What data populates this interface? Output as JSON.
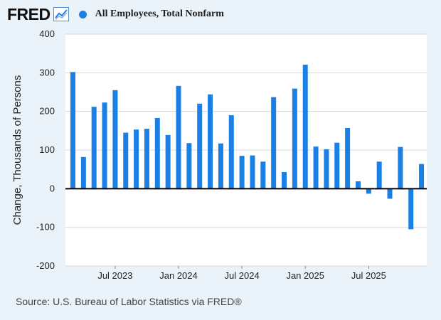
{
  "header": {
    "logo_text": "FRED",
    "series_label": "All Employees, Total Nonfarm"
  },
  "source": "Source: U.S. Bureau of Labor Statistics via FRED®",
  "colors": {
    "bar": "#1a80e5",
    "background": "#eaf3fa",
    "plot_background": "#ffffff",
    "grid": "#d8d8d8",
    "zero_line": "#000000"
  },
  "chart_data": {
    "type": "bar",
    "title": "All Employees, Total Nonfarm",
    "xlabel": "",
    "ylabel": "Change, Thousands of Persons",
    "ylim": [
      -200,
      400
    ],
    "yticks": [
      -200,
      -100,
      0,
      100,
      200,
      300,
      400
    ],
    "grid": true,
    "categories": [
      "2023-03",
      "2023-04",
      "2023-05",
      "2023-06",
      "2023-07",
      "2023-08",
      "2023-09",
      "2023-10",
      "2023-11",
      "2023-12",
      "2024-01",
      "2024-02",
      "2024-03",
      "2024-04",
      "2024-05",
      "2024-06",
      "2024-07",
      "2024-08",
      "2024-09",
      "2024-10",
      "2024-11",
      "2024-12",
      "2025-01",
      "2025-02",
      "2025-03",
      "2025-04",
      "2025-05",
      "2025-06",
      "2025-07",
      "2025-08",
      "2025-09",
      "2025-10",
      "2025-11",
      "2025-12"
    ],
    "values": [
      302,
      82,
      212,
      223,
      255,
      145,
      153,
      155,
      183,
      139,
      266,
      118,
      220,
      244,
      117,
      190,
      85,
      86,
      70,
      237,
      43,
      259,
      321,
      109,
      102,
      119,
      157,
      19,
      -13,
      70,
      -26,
      108,
      -105,
      64
    ],
    "x_ticks": [
      {
        "label": "Jul 2023",
        "index": 4
      },
      {
        "label": "Jan 2024",
        "index": 10
      },
      {
        "label": "Jul 2024",
        "index": 16
      },
      {
        "label": "Jan 2025",
        "index": 22
      },
      {
        "label": "Jul 2025",
        "index": 28
      }
    ]
  }
}
